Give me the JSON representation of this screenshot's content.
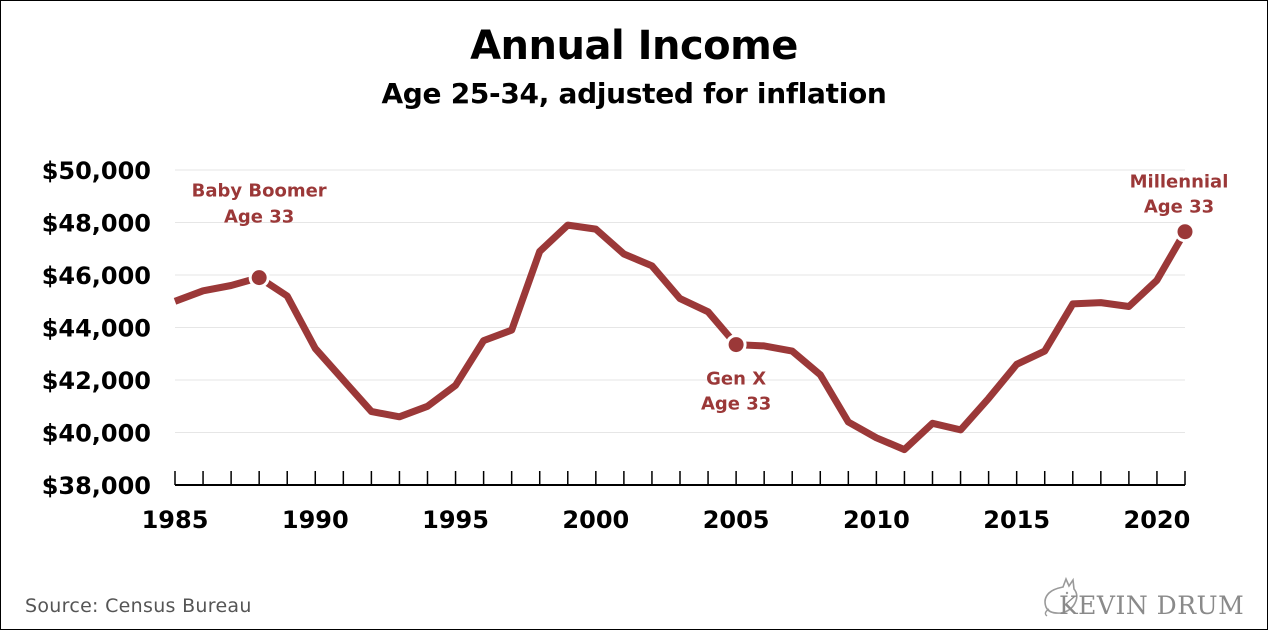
{
  "chart_data": {
    "type": "line",
    "title": "Annual Income",
    "subtitle": "Age 25-34, adjusted for inflation",
    "xlabel": "",
    "ylabel": "",
    "xlim": [
      1985,
      2021
    ],
    "ylim": [
      38000,
      50000
    ],
    "x_ticks": [
      1985,
      1990,
      1995,
      2000,
      2005,
      2010,
      2015,
      2020
    ],
    "y_ticks": [
      38000,
      40000,
      42000,
      44000,
      46000,
      48000,
      50000
    ],
    "y_tick_labels": [
      "$38,000",
      "$40,000",
      "$42,000",
      "$44,000",
      "$46,000",
      "$48,000",
      "$50,000"
    ],
    "grid": "horizontal",
    "line_color": "#9b3838",
    "series": [
      {
        "x": [
          1985,
          1986,
          1987,
          1988,
          1989,
          1990,
          1991,
          1992,
          1993,
          1994,
          1995,
          1996,
          1997,
          1998,
          1999,
          2000,
          2001,
          2002,
          2003,
          2004,
          2005,
          2006,
          2007,
          2008,
          2009,
          2010,
          2011,
          2012,
          2013,
          2014,
          2015,
          2016,
          2017,
          2018,
          2019,
          2020,
          2021
        ],
        "values": [
          45000,
          45400,
          45600,
          45900,
          45200,
          43200,
          42000,
          40800,
          40600,
          41000,
          41800,
          43500,
          43900,
          46900,
          47900,
          47750,
          46800,
          46350,
          45100,
          44600,
          43350,
          43300,
          43100,
          42200,
          40400,
          39800,
          39350,
          40350,
          40100,
          41300,
          42600,
          43100,
          44900,
          44950,
          44800,
          45800,
          47650
        ]
      }
    ],
    "annotations": [
      {
        "x": 1988,
        "y": 45900,
        "line1": "Baby Boomer",
        "line2": "Age 33"
      },
      {
        "x": 2005,
        "y": 43350,
        "line1": "Gen X",
        "line2": "Age 33"
      },
      {
        "x": 2021,
        "y": 47650,
        "line1": "Millennial",
        "line2": "Age 33"
      }
    ]
  },
  "footer": {
    "source": "Source:  Census Bureau",
    "brand": "KEVIN DRUM"
  }
}
